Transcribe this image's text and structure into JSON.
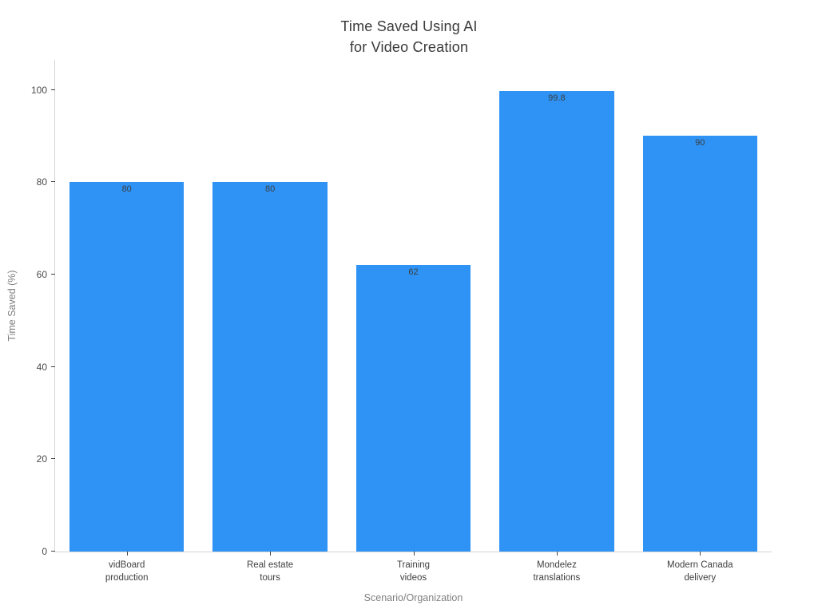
{
  "title": {
    "line1": "Time Saved Using AI",
    "line2": "for Video Creation"
  },
  "chart_data": {
    "type": "bar",
    "title": "Time Saved Using AI for Video Creation",
    "categories": [
      "vidBoard production",
      "Real estate tours",
      "Training videos",
      "Mondelez translations",
      "Modern Canada delivery"
    ],
    "category_lines": [
      [
        "vidBoard",
        "production"
      ],
      [
        "Real estate",
        "tours"
      ],
      [
        "Training",
        "videos"
      ],
      [
        "Mondelez",
        "translations"
      ],
      [
        "Modern Canada",
        "delivery"
      ]
    ],
    "values": [
      80,
      80,
      62,
      99.8,
      90
    ],
    "value_labels": [
      "80",
      "80",
      "62",
      "99.8",
      "90"
    ],
    "xlabel": "Scenario/Organization",
    "ylabel": "Time Saved (%)",
    "yticks": [
      0,
      20,
      40,
      60,
      80,
      100
    ],
    "ylim": [
      0,
      106.5
    ],
    "grid": false,
    "legend": "none",
    "bar_band_fraction": 0.8,
    "colors": {
      "bar": "#2e93f5",
      "bar_value_label": "#3d3d3d",
      "axis_line": "#d4d4d4",
      "tick": "#444444",
      "tick_label": "#4a4a4a",
      "axis_title": "#7f7f7f",
      "title": "#3a3a3a"
    }
  }
}
